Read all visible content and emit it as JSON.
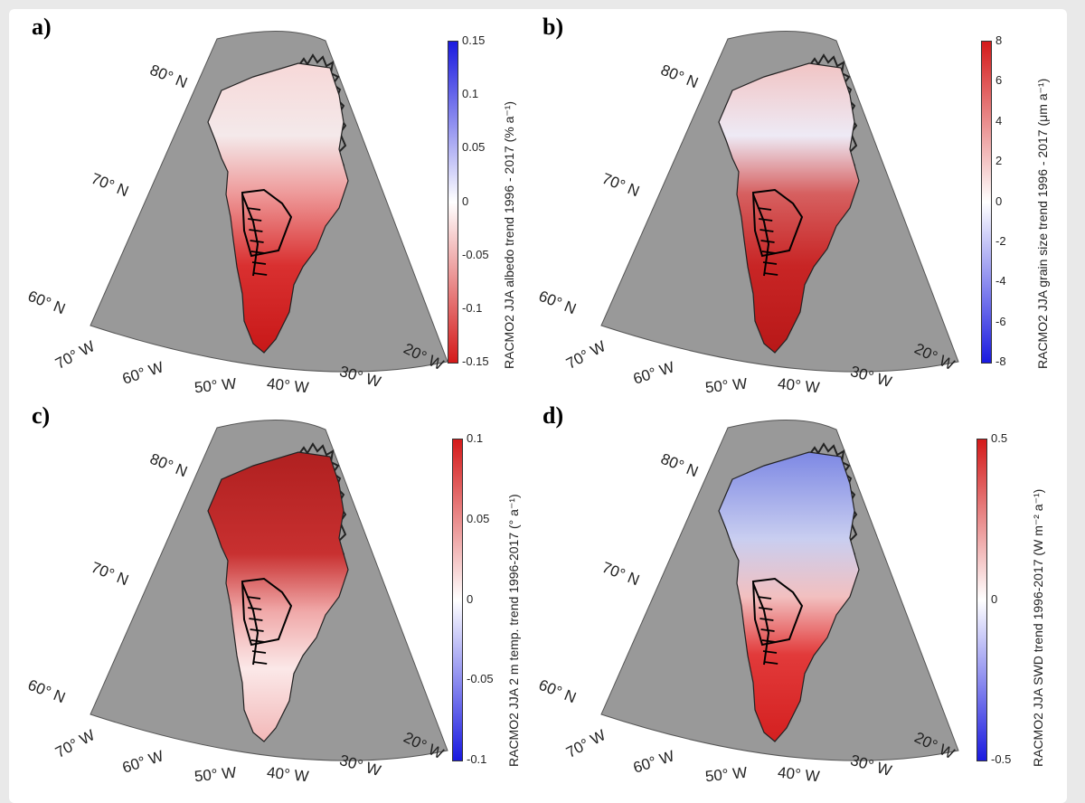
{
  "panels": [
    {
      "id": "a",
      "label": "a)",
      "colorbar_title": "RACMO2 JJA albedo trend 1996 - 2017 (% a⁻¹)",
      "ticks": [
        "0.15",
        "0.1",
        "0.05",
        "0",
        "-0.05",
        "-0.1",
        "-0.15"
      ],
      "colors": {
        "top": "#1a1adf",
        "mid": "#ffffff",
        "bottom": "#d41a1a"
      },
      "lat_labels": [
        "80° N",
        "70° N",
        "60° N"
      ],
      "lon_labels": [
        "70° W",
        "60° W",
        "50° W",
        "40° W",
        "30° W",
        "20° W"
      ]
    },
    {
      "id": "b",
      "label": "b)",
      "colorbar_title": "RACMO2 JJA grain size trend 1996 - 2017 (μm a⁻¹)",
      "ticks": [
        "8",
        "6",
        "4",
        "2",
        "0",
        "-2",
        "-4",
        "-6",
        "-8"
      ],
      "colors": {
        "top": "#d41a1a",
        "mid": "#ffffff",
        "bottom": "#1a1adf"
      },
      "lat_labels": [
        "80° N",
        "70° N",
        "60° N"
      ],
      "lon_labels": [
        "70° W",
        "60° W",
        "50° W",
        "40° W",
        "30° W",
        "20° W"
      ]
    },
    {
      "id": "c",
      "label": "c)",
      "colorbar_title": "RACMO2 JJA 2 m temp. trend 1996-2017 (° a⁻¹)",
      "ticks": [
        "0.1",
        "0.05",
        "0",
        "-0.05",
        "-0.1"
      ],
      "colors": {
        "top": "#d41a1a",
        "mid": "#ffffff",
        "bottom": "#1a1adf"
      },
      "lat_labels": [
        "80° N",
        "70° N",
        "60° N"
      ],
      "lon_labels": [
        "70° W",
        "60° W",
        "50° W",
        "40° W",
        "30° W",
        "20° W"
      ]
    },
    {
      "id": "d",
      "label": "d)",
      "colorbar_title": "RACMO2 JJA SWD trend 1996-2017 (W m⁻² a⁻¹)",
      "ticks": [
        "0.5",
        "0",
        "-0.5"
      ],
      "colors": {
        "top": "#d41a1a",
        "mid": "#ffffff",
        "bottom": "#1a1adf"
      },
      "lat_labels": [
        "80° N",
        "70° N",
        "60° N"
      ],
      "lon_labels": [
        "70° W",
        "60° W",
        "50° W",
        "40° W",
        "30° W",
        "20° W"
      ]
    }
  ],
  "map_colors": {
    "ocean": "#999999",
    "land": "#ffffff",
    "coast": "#222222"
  }
}
